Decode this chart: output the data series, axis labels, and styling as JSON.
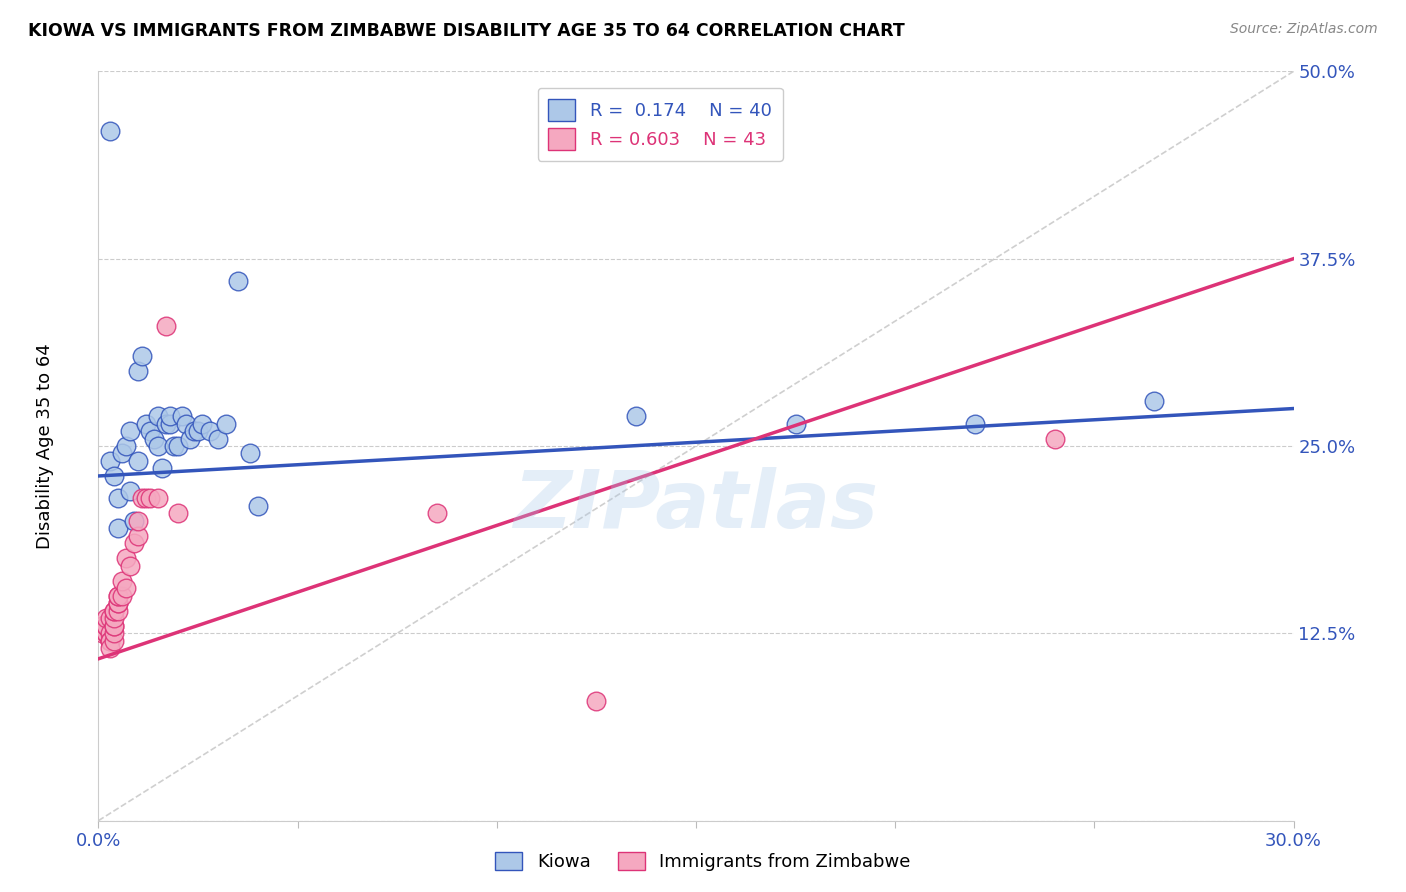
{
  "title": "KIOWA VS IMMIGRANTS FROM ZIMBABWE DISABILITY AGE 35 TO 64 CORRELATION CHART",
  "source_text": "Source: ZipAtlas.com",
  "ylabel": "Disability Age 35 to 64",
  "legend_label1": "Kiowa",
  "legend_label2": "Immigrants from Zimbabwe",
  "R1": 0.174,
  "N1": 40,
  "R2": 0.603,
  "N2": 43,
  "color1": "#adc8e8",
  "color2": "#f5a8c0",
  "line_color1": "#3355bb",
  "line_color2": "#dd3377",
  "xmin": 0.0,
  "xmax": 0.3,
  "ymin": 0.0,
  "ymax": 0.5,
  "ytick_vals": [
    0.0,
    0.125,
    0.25,
    0.375,
    0.5
  ],
  "ytick_labels": [
    "",
    "12.5%",
    "25.0%",
    "37.5%",
    "50.0%"
  ],
  "xtick_vals": [
    0.0,
    0.05,
    0.1,
    0.15,
    0.2,
    0.25,
    0.3
  ],
  "xtick_labels": [
    "0.0%",
    "",
    "",
    "",
    "",
    "",
    "30.0%"
  ],
  "watermark": "ZIPatlas",
  "kiowa_x": [
    0.003,
    0.004,
    0.005,
    0.005,
    0.006,
    0.007,
    0.008,
    0.008,
    0.009,
    0.01,
    0.01,
    0.011,
    0.012,
    0.013,
    0.014,
    0.015,
    0.015,
    0.016,
    0.017,
    0.018,
    0.018,
    0.019,
    0.02,
    0.021,
    0.022,
    0.023,
    0.024,
    0.025,
    0.026,
    0.028,
    0.03,
    0.032,
    0.035,
    0.038,
    0.04,
    0.003,
    0.135,
    0.175,
    0.22,
    0.265
  ],
  "kiowa_y": [
    0.24,
    0.23,
    0.215,
    0.195,
    0.245,
    0.25,
    0.26,
    0.22,
    0.2,
    0.24,
    0.3,
    0.31,
    0.265,
    0.26,
    0.255,
    0.27,
    0.25,
    0.235,
    0.265,
    0.265,
    0.27,
    0.25,
    0.25,
    0.27,
    0.265,
    0.255,
    0.26,
    0.26,
    0.265,
    0.26,
    0.255,
    0.265,
    0.36,
    0.245,
    0.21,
    0.46,
    0.27,
    0.265,
    0.265,
    0.28
  ],
  "zimb_x": [
    0.001,
    0.001,
    0.001,
    0.001,
    0.002,
    0.002,
    0.002,
    0.002,
    0.002,
    0.003,
    0.003,
    0.003,
    0.003,
    0.003,
    0.004,
    0.004,
    0.004,
    0.004,
    0.004,
    0.004,
    0.004,
    0.005,
    0.005,
    0.005,
    0.005,
    0.005,
    0.006,
    0.006,
    0.007,
    0.007,
    0.008,
    0.009,
    0.01,
    0.01,
    0.011,
    0.012,
    0.013,
    0.015,
    0.017,
    0.02,
    0.085,
    0.125,
    0.24
  ],
  "zimb_y": [
    0.13,
    0.13,
    0.13,
    0.125,
    0.125,
    0.125,
    0.13,
    0.13,
    0.135,
    0.135,
    0.125,
    0.12,
    0.12,
    0.115,
    0.12,
    0.125,
    0.13,
    0.13,
    0.135,
    0.14,
    0.14,
    0.14,
    0.145,
    0.145,
    0.15,
    0.15,
    0.15,
    0.16,
    0.155,
    0.175,
    0.17,
    0.185,
    0.19,
    0.2,
    0.215,
    0.215,
    0.215,
    0.215,
    0.33,
    0.205,
    0.205,
    0.08,
    0.255
  ],
  "blue_line_x": [
    0.0,
    0.3
  ],
  "blue_line_y": [
    0.23,
    0.275
  ],
  "pink_line_x": [
    0.0,
    0.3
  ],
  "pink_line_y": [
    0.108,
    0.375
  ],
  "diag_line_x": [
    0.0,
    0.3
  ],
  "diag_line_y": [
    0.0,
    0.5
  ]
}
